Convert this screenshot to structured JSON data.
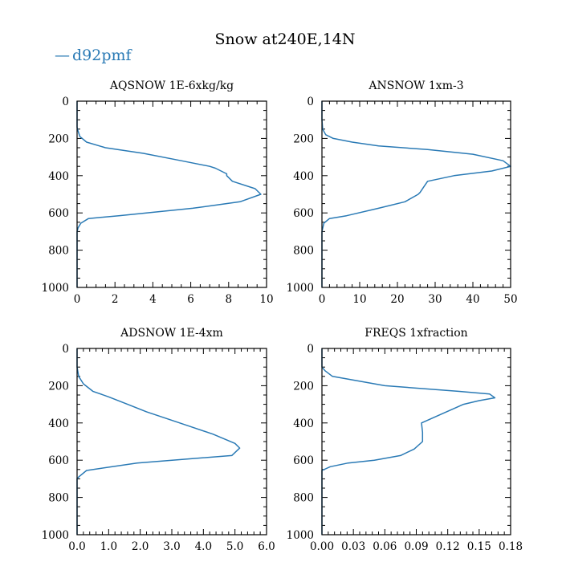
{
  "title": "Snow at240E,14N",
  "legend": {
    "label": "d92pmf",
    "marker": "—",
    "color": "#2a7ab5"
  },
  "chart_data": [
    {
      "type": "line",
      "title": "AQSNOW  1E-6xkg/kg",
      "xlim": [
        0,
        10
      ],
      "ylim": [
        1000,
        0
      ],
      "x_ticks": [
        0,
        2,
        4,
        6,
        8,
        10
      ],
      "x_tick_labels": [
        "0",
        "2",
        "4",
        "6",
        "8",
        "10"
      ],
      "x_minor_step": 0.5,
      "y_ticks": [
        0,
        200,
        400,
        600,
        800,
        1000
      ],
      "y_tick_labels": [
        "0",
        "200",
        "400",
        "600",
        "800",
        "1000"
      ],
      "y_minor_step": 50,
      "series": [
        {
          "name": "d92pmf",
          "x": [
            0,
            0,
            0,
            0.05,
            0.15,
            0.5,
            1.5,
            3.5,
            5.5,
            7,
            7.3,
            7.9,
            7.9,
            8.2,
            9.4,
            9.7,
            8.6,
            6.1,
            2.2,
            0.6,
            0.2,
            0.05,
            0,
            0,
            0,
            0
          ],
          "y": [
            0,
            100,
            140,
            160,
            190,
            220,
            250,
            280,
            320,
            350,
            360,
            390,
            400,
            430,
            470,
            500,
            540,
            575,
            615,
            630,
            655,
            680,
            700,
            800,
            900,
            1000
          ]
        }
      ]
    },
    {
      "type": "line",
      "title": "ANSNOW  1xm-3",
      "xlim": [
        0,
        50
      ],
      "ylim": [
        1000,
        0
      ],
      "x_ticks": [
        0,
        10,
        20,
        30,
        40,
        50
      ],
      "x_tick_labels": [
        "0",
        "10",
        "20",
        "30",
        "40",
        "50"
      ],
      "x_minor_step": 2,
      "y_ticks": [
        0,
        200,
        400,
        600,
        800,
        1000
      ],
      "y_tick_labels": [
        "0",
        "200",
        "400",
        "600",
        "800",
        "1000"
      ],
      "y_minor_step": 50,
      "series": [
        {
          "name": "d92pmf",
          "x": [
            0,
            0,
            0.2,
            1,
            3,
            8,
            15,
            28,
            40,
            48,
            50,
            45,
            35,
            28,
            27,
            26,
            25.5,
            22,
            15,
            6.5,
            2,
            0.5,
            0,
            0,
            0
          ],
          "y": [
            0,
            100,
            150,
            180,
            200,
            220,
            240,
            260,
            285,
            320,
            350,
            375,
            400,
            430,
            460,
            490,
            500,
            540,
            575,
            615,
            630,
            655,
            700,
            850,
            1000
          ]
        }
      ]
    },
    {
      "type": "line",
      "title": "ADSNOW  1E-4xm",
      "xlim": [
        0,
        6
      ],
      "ylim": [
        1000,
        0
      ],
      "x_ticks": [
        0,
        1,
        2,
        3,
        4,
        5,
        6
      ],
      "x_tick_labels": [
        "0.0",
        "1.0",
        "2.0",
        "3.0",
        "4.0",
        "5.0",
        "6.0"
      ],
      "x_minor_step": 0.2,
      "y_ticks": [
        0,
        200,
        400,
        600,
        800,
        1000
      ],
      "y_tick_labels": [
        "0",
        "200",
        "400",
        "600",
        "800",
        "1000"
      ],
      "y_minor_step": 50,
      "series": [
        {
          "name": "d92pmf",
          "x": [
            0,
            0,
            0.05,
            0.2,
            0.5,
            1.0,
            1.6,
            2.2,
            2.9,
            3.6,
            4.3,
            5.0,
            5.15,
            4.9,
            1.9,
            0.3,
            0.05,
            0,
            0,
            0
          ],
          "y": [
            0,
            100,
            150,
            190,
            230,
            260,
            300,
            340,
            380,
            420,
            460,
            510,
            535,
            575,
            615,
            655,
            690,
            700,
            850,
            1000
          ]
        }
      ]
    },
    {
      "type": "line",
      "title": "FREQS  1xfraction",
      "xlim": [
        0,
        0.18
      ],
      "ylim": [
        1000,
        0
      ],
      "x_ticks": [
        0,
        0.03,
        0.06,
        0.09,
        0.12,
        0.15,
        0.18
      ],
      "x_tick_labels": [
        "0.00",
        "0.03",
        "0.06",
        "0.09",
        "0.12",
        "0.15",
        "0.18"
      ],
      "x_minor_step": 0.006,
      "y_ticks": [
        0,
        200,
        400,
        600,
        800,
        1000
      ],
      "y_tick_labels": [
        "0",
        "200",
        "400",
        "600",
        "800",
        "1000"
      ],
      "y_minor_step": 50,
      "series": [
        {
          "name": "d92pmf",
          "x": [
            0,
            0,
            0.003,
            0.01,
            0.06,
            0.13,
            0.16,
            0.165,
            0.15,
            0.135,
            0.115,
            0.095,
            0.096,
            0.096,
            0.088,
            0.075,
            0.05,
            0.025,
            0.008,
            0,
            0,
            0
          ],
          "y": [
            0,
            100,
            120,
            150,
            200,
            230,
            245,
            265,
            280,
            300,
            350,
            400,
            450,
            500,
            540,
            575,
            600,
            615,
            635,
            655,
            800,
            1000
          ]
        }
      ]
    }
  ]
}
